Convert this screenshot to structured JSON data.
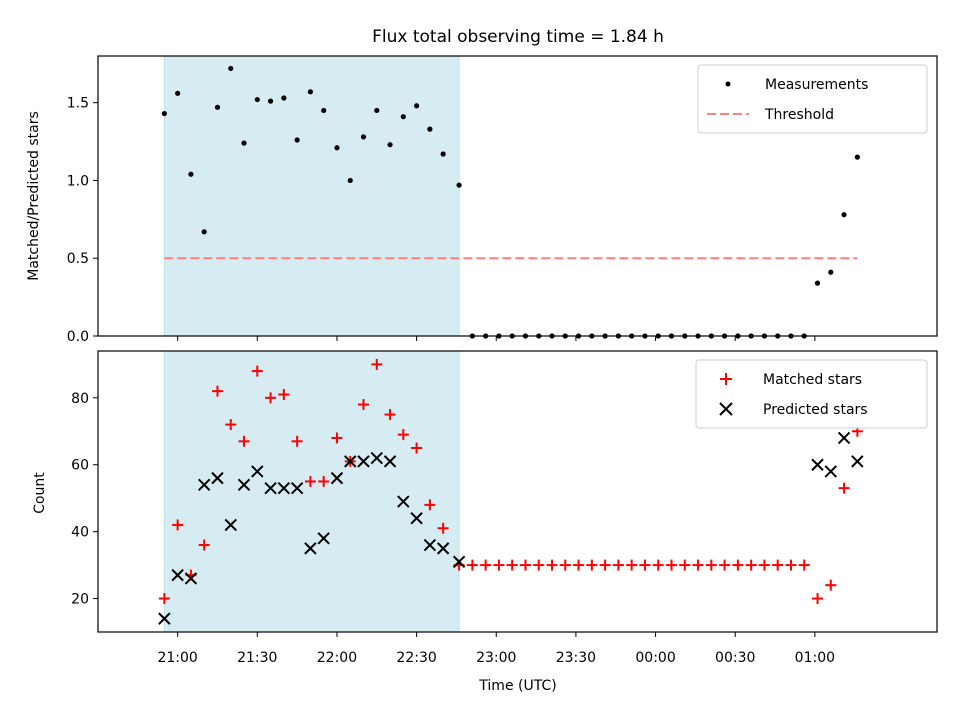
{
  "chart_data": [
    {
      "type": "scatter",
      "title": "Flux total observing time = 1.84 h",
      "xlabel": "",
      "ylabel": "Matched/Predicted stars",
      "ylim": [
        0,
        1.8
      ],
      "yticks": [
        "0.0",
        "0.5",
        "1.0",
        "1.5"
      ],
      "legend_position": "top-right",
      "shaded_span": [
        "20:55",
        "22:46"
      ],
      "series": [
        {
          "name": "Measurements",
          "marker": "dot",
          "color": "#000000",
          "x": [
            "20:55",
            "21:00",
            "21:05",
            "21:10",
            "21:15",
            "21:20",
            "21:25",
            "21:30",
            "21:35",
            "21:40",
            "21:45",
            "21:50",
            "21:55",
            "22:00",
            "22:05",
            "22:10",
            "22:15",
            "22:20",
            "22:25",
            "22:30",
            "22:35",
            "22:40",
            "22:46",
            "22:51",
            "22:56",
            "23:01",
            "23:06",
            "23:11",
            "23:16",
            "23:21",
            "23:26",
            "23:31",
            "23:36",
            "23:41",
            "23:46",
            "23:51",
            "23:56",
            "00:01",
            "00:06",
            "00:11",
            "00:16",
            "00:21",
            "00:26",
            "00:31",
            "00:36",
            "00:41",
            "00:46",
            "00:51",
            "00:56",
            "01:01",
            "01:06",
            "01:11"
          ],
          "y": [
            1.43,
            1.56,
            1.04,
            0.67,
            1.47,
            1.72,
            1.24,
            1.52,
            1.51,
            1.53,
            1.26,
            1.57,
            1.45,
            1.21,
            1.0,
            1.28,
            1.45,
            1.23,
            1.41,
            1.48,
            1.33,
            1.17,
            0.97,
            0,
            0,
            0,
            0,
            0,
            0,
            0,
            0,
            0,
            0,
            0,
            0,
            0,
            0,
            0,
            0,
            0,
            0,
            0,
            0,
            0,
            0,
            0,
            0,
            0,
            0,
            0.34,
            0.41,
            0.78
          ]
        },
        {
          "name": "Threshold",
          "style": "dashed",
          "color": "#ff7f7f",
          "x": [
            "20:55",
            "01:16"
          ],
          "y": [
            0.5,
            0.5
          ]
        }
      ],
      "extra_points": [
        {
          "x": "01:16",
          "y": 1.15
        }
      ]
    },
    {
      "type": "scatter",
      "title": "",
      "xlabel": "Time (UTC)",
      "ylabel": "Count",
      "ylim": [
        10,
        94
      ],
      "yticks": [
        "20",
        "40",
        "60",
        "80"
      ],
      "xticks": [
        "21:00",
        "21:30",
        "22:00",
        "22:30",
        "23:00",
        "23:30",
        "00:00",
        "00:30",
        "01:00"
      ],
      "legend_position": "top-right",
      "shaded_span": [
        "20:55",
        "22:46"
      ],
      "series": [
        {
          "name": "Matched stars",
          "marker": "plus",
          "color": "#ff0000",
          "x": [
            "20:55",
            "21:00",
            "21:05",
            "21:10",
            "21:15",
            "21:20",
            "21:25",
            "21:30",
            "21:35",
            "21:40",
            "21:45",
            "21:50",
            "21:55",
            "22:00",
            "22:05",
            "22:10",
            "22:15",
            "22:20",
            "22:25",
            "22:30",
            "22:35",
            "22:40",
            "22:46",
            "22:51",
            "22:56",
            "23:01",
            "23:06",
            "23:11",
            "23:16",
            "23:21",
            "23:26",
            "23:31",
            "23:36",
            "23:41",
            "23:46",
            "23:51",
            "23:56",
            "00:01",
            "00:06",
            "00:11",
            "00:16",
            "00:21",
            "00:26",
            "00:31",
            "00:36",
            "00:41",
            "00:46",
            "00:51",
            "00:56",
            "01:01",
            "01:06",
            "01:11",
            "01:16"
          ],
          "y": [
            20,
            42,
            27,
            36,
            82,
            72,
            67,
            88,
            80,
            81,
            67,
            55,
            55,
            68,
            61,
            78,
            90,
            75,
            69,
            65,
            48,
            41,
            30,
            30,
            30,
            30,
            30,
            30,
            30,
            30,
            30,
            30,
            30,
            30,
            30,
            30,
            30,
            30,
            30,
            30,
            30,
            30,
            30,
            30,
            30,
            30,
            30,
            30,
            30,
            20,
            24,
            53,
            70
          ]
        },
        {
          "name": "Predicted stars",
          "marker": "x",
          "color": "#000000",
          "x": [
            "20:55",
            "21:00",
            "21:05",
            "21:10",
            "21:15",
            "21:20",
            "21:25",
            "21:30",
            "21:35",
            "21:40",
            "21:45",
            "21:50",
            "21:55",
            "22:00",
            "22:05",
            "22:10",
            "22:15",
            "22:20",
            "22:25",
            "22:30",
            "22:35",
            "22:40",
            "22:46",
            "01:01",
            "01:06",
            "01:11",
            "01:16"
          ],
          "y": [
            14,
            27,
            26,
            54,
            56,
            42,
            54,
            58,
            53,
            53,
            53,
            35,
            38,
            56,
            61,
            61,
            62,
            61,
            49,
            44,
            36,
            35,
            31,
            60,
            58,
            68,
            61
          ]
        }
      ]
    }
  ],
  "colors": {
    "shade": "#add8e6",
    "axes": "#000000",
    "matched": "#ff0000",
    "predicted": "#000000",
    "threshold": "#ff7f7f"
  }
}
